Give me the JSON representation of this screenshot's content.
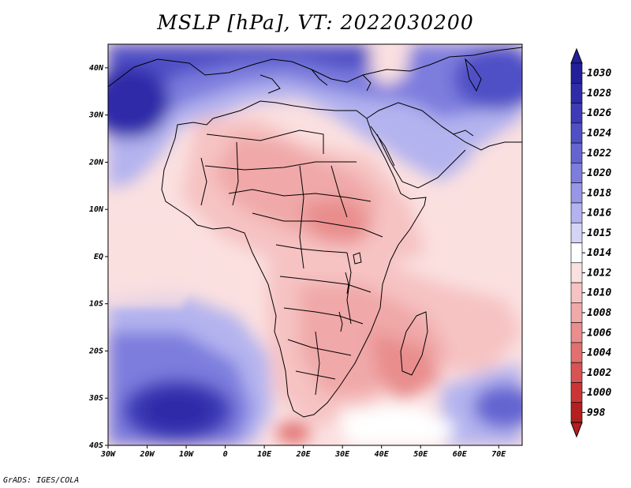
{
  "title": "MSLP [hPa], VT: 2022030200",
  "credit": "GrADS: IGES/COLA",
  "map": {
    "lon_range": [
      -30,
      76
    ],
    "lat_range": [
      -40,
      45
    ],
    "x_ticks": [
      "30W",
      "20W",
      "10W",
      "0",
      "10E",
      "20E",
      "30E",
      "40E",
      "50E",
      "60E",
      "70E"
    ],
    "y_ticks": [
      "40S",
      "30S",
      "20S",
      "10S",
      "EQ",
      "10N",
      "20N",
      "30N",
      "40N"
    ]
  },
  "colorbar": {
    "levels": [
      "1030",
      "1028",
      "1026",
      "1024",
      "1022",
      "1020",
      "1018",
      "1016",
      "1015",
      "1014",
      "1012",
      "1010",
      "1008",
      "1006",
      "1004",
      "1002",
      "1000",
      "998"
    ],
    "colors": [
      "#22209a",
      "#2e2ca8",
      "#3d3bb8",
      "#4f4fc6",
      "#6565d2",
      "#7d7dde",
      "#9797e6",
      "#b3b3ef",
      "#d4d4f7",
      "#ffffff",
      "#fbe0e0",
      "#f6c2c2",
      "#f0a8a8",
      "#e98d8d",
      "#e27070",
      "#d85353",
      "#cc3535",
      "#b41f1f"
    ]
  },
  "legend_rows": [
    {
      "label": "1030"
    },
    {
      "label": "1028"
    },
    {
      "label": "1026"
    },
    {
      "label": "1024"
    },
    {
      "label": "1022"
    },
    {
      "label": "1020"
    },
    {
      "label": "1018"
    },
    {
      "label": "1016"
    },
    {
      "label": "1015"
    },
    {
      "label": "1014"
    },
    {
      "label": "1012"
    },
    {
      "label": "1010"
    },
    {
      "label": "1008"
    },
    {
      "label": "1006"
    },
    {
      "label": "1004"
    },
    {
      "label": "1002"
    },
    {
      "label": "1000"
    },
    {
      "label": "998"
    }
  ]
}
